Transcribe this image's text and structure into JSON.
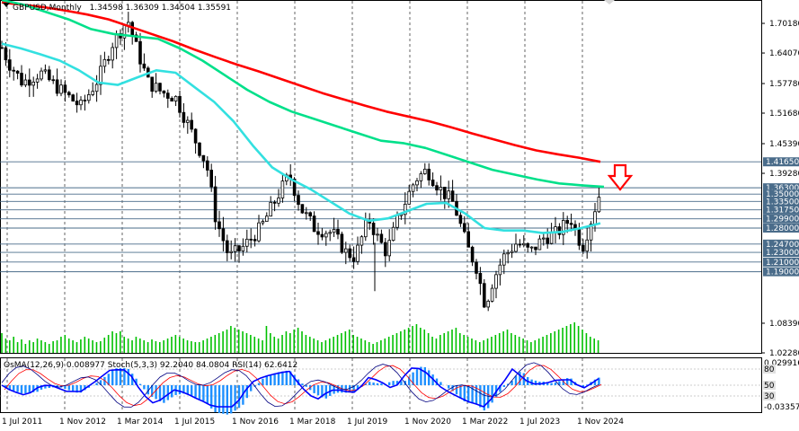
{
  "header": {
    "symbol": "GBPUSD,Monthly",
    "ohlc": "1.34598 1.36309 1.34504 1.35591"
  },
  "indicator_header": "OsMA(12,26,9) 0.008977  Stoch(5,3,3) 92.2040 84.0804  RSI(14) 62.6412",
  "colors": {
    "background": "#ffffff",
    "candle": "#000000",
    "ema_red": "#ff0000",
    "ema_green": "#00e08a",
    "ema_cyan": "#33e0e0",
    "volume": "#00c000",
    "level": "#4a6c8a",
    "arrow": "#ff0000",
    "osma": "#1e90ff",
    "stoch_main": "#000080",
    "stoch_signal": "#ff0000",
    "rsi": "#0000ff"
  },
  "chart_data": {
    "type": "candlestick",
    "title": "GBPUSD,Monthly",
    "ylim": [
      1.0228,
      1.7481
    ],
    "y_ticks": [
      "1.70180",
      "1.64070",
      "1.57780",
      "1.51680",
      "1.45390",
      "1.39280",
      "1.08390",
      "1.02280"
    ],
    "levels": [
      "1.41650",
      "1.36300",
      "1.35000",
      "1.33500",
      "1.31750",
      "1.29900",
      "1.28000",
      "1.24700",
      "1.23000",
      "1.21000",
      "1.19000"
    ],
    "current_price": "1.35591",
    "x_labels": [
      "1 Jul 2011",
      "1 Nov 2012",
      "1 Mar 2014",
      "1 Jul 2015",
      "1 Nov 2016",
      "1 Mar 2018",
      "1 Jul 2019",
      "1 Nov 2020",
      "1 Mar 2022",
      "1 Jul 2023",
      "1 Nov 2024"
    ],
    "ema_red": [
      1.745,
      1.74,
      1.735,
      1.728,
      1.72,
      1.71,
      1.695,
      1.68,
      1.665,
      1.648,
      1.632,
      1.617,
      1.603,
      1.588,
      1.573,
      1.558,
      1.545,
      1.532,
      1.52,
      1.51,
      1.5,
      1.488,
      1.475,
      1.463,
      1.451,
      1.44,
      1.432,
      1.425,
      1.4165
    ],
    "ema_green": [
      1.75,
      1.74,
      1.725,
      1.71,
      1.69,
      1.68,
      1.675,
      1.67,
      1.65,
      1.625,
      1.595,
      1.565,
      1.54,
      1.52,
      1.505,
      1.49,
      1.475,
      1.46,
      1.455,
      1.445,
      1.43,
      1.415,
      1.4,
      1.39,
      1.38,
      1.372,
      1.368,
      1.365
    ],
    "ema_cyan": [
      1.66,
      1.65,
      1.638,
      1.625,
      1.605,
      1.58,
      1.575,
      1.59,
      1.605,
      1.6,
      1.57,
      1.54,
      1.5,
      1.45,
      1.405,
      1.38,
      1.36,
      1.335,
      1.31,
      1.295,
      1.3,
      1.315,
      1.33,
      1.332,
      1.31,
      1.28,
      1.275,
      1.275,
      1.27,
      1.272,
      1.28,
      1.29
    ],
    "volume": [
      22,
      16,
      14,
      18,
      12,
      15,
      10,
      14,
      12,
      16,
      14,
      12,
      10,
      13,
      14,
      18,
      20,
      16,
      14,
      12,
      15,
      18,
      16,
      14,
      12,
      13,
      17,
      20,
      24,
      22,
      24,
      18,
      16,
      14,
      18,
      16,
      14,
      12,
      15,
      13,
      12,
      14,
      16,
      18,
      20,
      18,
      16,
      14,
      13,
      12,
      12,
      14,
      16,
      18,
      20,
      22,
      24,
      26,
      30,
      28,
      26,
      24,
      22,
      20,
      18,
      16,
      14,
      30,
      22,
      18,
      16,
      20,
      24,
      22,
      26,
      28,
      24,
      20,
      18,
      16,
      14,
      12,
      14,
      16,
      18,
      20,
      22,
      24,
      26,
      20,
      18,
      16,
      14,
      12,
      10,
      12,
      14,
      16,
      18,
      20,
      22,
      24,
      26,
      28,
      30,
      32,
      28,
      26,
      22,
      18,
      16,
      20,
      22,
      24,
      26,
      28,
      22,
      20,
      18,
      16,
      14,
      12,
      14,
      16,
      18,
      20,
      22,
      24,
      26,
      22,
      20,
      18,
      16,
      14,
      12,
      14,
      16,
      18,
      20,
      22,
      24,
      26,
      28,
      30,
      32,
      34,
      30,
      26,
      22,
      18,
      16,
      14
    ],
    "osma_label_top": "0.029916",
    "osma_label_bottom": "-0.033577",
    "osc_levels": [
      "80",
      "50",
      "30"
    ]
  }
}
